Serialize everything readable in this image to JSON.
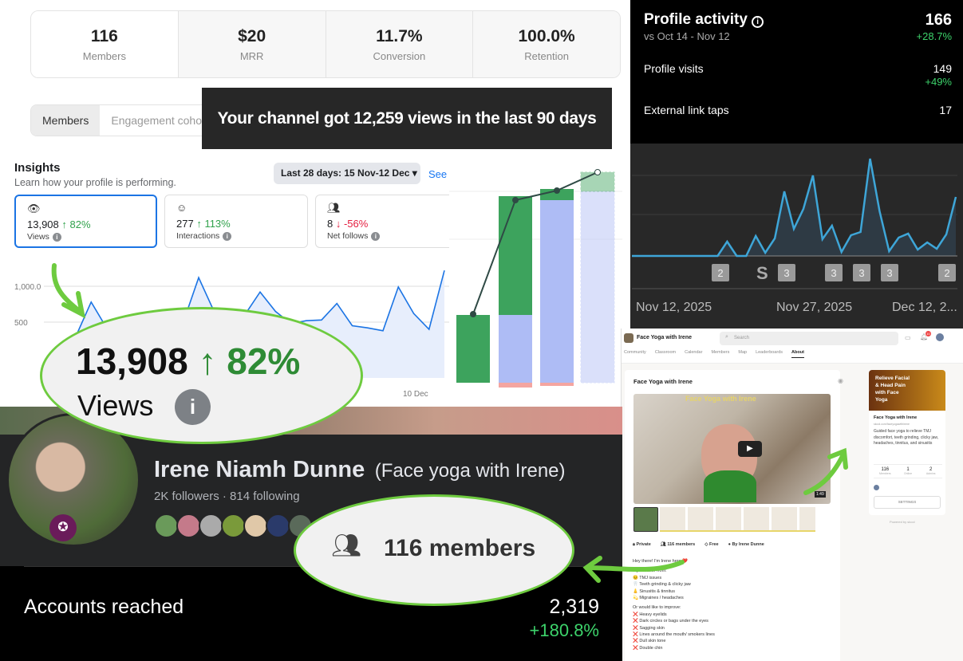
{
  "stats": [
    {
      "value": "116",
      "label": "Members"
    },
    {
      "value": "$20",
      "label": "MRR"
    },
    {
      "value": "11.7%",
      "label": "Conversion"
    },
    {
      "value": "100.0%",
      "label": "Retention"
    }
  ],
  "tabs": [
    "Members",
    "Engagement coho"
  ],
  "banner": "Your channel got 12,259 views in the last 90 days",
  "insights": {
    "title": "Insights",
    "subtitle": "Learn how your profile is performing.",
    "range": "Last 28 days: 15 Nov-12 Dec",
    "see": "See",
    "cards": [
      {
        "icon": "eye-icon",
        "value": "13,908",
        "change": "↑ 82%",
        "label": "Views",
        "trend": "up"
      },
      {
        "icon": "interactions-icon",
        "value": "277",
        "change": "↑ 113%",
        "label": "Interactions",
        "trend": "up"
      },
      {
        "icon": "people-icon",
        "value": "8",
        "change": "↓ -56%",
        "label": "Net follows",
        "trend": "down"
      }
    ],
    "yticks": [
      "1,000.0",
      "500"
    ],
    "xtick": "10 Dec"
  },
  "views_callout": {
    "value": "13,908",
    "change": "↑ 82%",
    "label": "Views"
  },
  "profile_activity": {
    "title": "Profile activity",
    "compare": "vs Oct 14 - Nov 12",
    "total": "166",
    "total_change": "+28.7%",
    "rows": [
      {
        "label": "Profile visits",
        "value": "149",
        "change": "+49%"
      },
      {
        "label": "External link taps",
        "value": "17",
        "change": ""
      }
    ]
  },
  "youtube": {
    "xticks": [
      "Nov 12, 2025",
      "Nov 27, 2025",
      "Dec 12, 2..."
    ],
    "markers": [
      "2",
      "shorts-icon",
      "3",
      "3",
      "3",
      "3",
      "2"
    ]
  },
  "fb_profile": {
    "name": "Irene Niamh Dunne",
    "alt_name": "(Face yoga with Irene)",
    "followers": "2K followers · 814 following"
  },
  "members_callout": "116 members",
  "accounts_reached": {
    "label": "Accounts reached",
    "value": "2,319",
    "change": "+180.8%"
  },
  "skool": {
    "group": "Face Yoga with Irene",
    "search_placeholder": "Search",
    "notif_count": "10",
    "nav": [
      "Community",
      "Classroom",
      "Calendar",
      "Members",
      "Map",
      "Leaderboards",
      "About"
    ],
    "about_title": "Face Yoga with Irene",
    "video_caption": "Face Yoga with Irene",
    "duration": "1:49",
    "meta": [
      "Private",
      "116 members",
      "Free",
      "By Irene Dunne"
    ],
    "body": [
      "Hey there! I'm Irene here ❤️",
      "If you suffer from:",
      "😣 TMJ issues",
      "🦷 Teeth grinding & clicky jaw",
      "👃 Sinusitis & tinnitus",
      "💫 Migraines / headaches",
      "Or would like to improve:",
      "❌ Heavy eyelids",
      "❌ Dark circles or bags under the eyes",
      "❌ Sagging skin",
      "❌ Lines around the mouth/ smokers lines",
      "❌ Dull skin tone",
      "❌ Double chin"
    ],
    "side": {
      "banner": "Relieve Facial & Head Pain with Face Yoga",
      "name": "Face Yoga with Irene",
      "url": "skool.com/faceyogawithirene",
      "desc": "Guided face yoga to relieve TMJ discomfort, teeth grinding, clicky jaw, headaches, tinnitus, and sinusitis",
      "stats": [
        {
          "v": "116",
          "l": "Members"
        },
        {
          "v": "1",
          "l": "Online"
        },
        {
          "v": "2",
          "l": "Admins"
        }
      ],
      "settings": "SETTINGS",
      "powered": "Powered by skool"
    }
  },
  "colors": {
    "fb_blue": "#1877f2",
    "green": "#31a24c",
    "red": "#e41e3f",
    "yt_line": "#3ea6d8",
    "callout_green": "#6ecb3f"
  },
  "chart_data": [
    {
      "type": "area",
      "yticks": [
        500,
        1000
      ],
      "xticks": [
        "10 Dec"
      ],
      "values": [
        300,
        780,
        420,
        380,
        350,
        400,
        450,
        500,
        1120,
        650,
        580,
        600,
        920,
        650,
        480,
        520,
        530,
        760,
        450,
        420,
        380,
        990,
        620,
        400,
        1220
      ]
    },
    {
      "type": "line",
      "xticks": [
        "Nov 12, 2025",
        "Nov 27, 2025",
        "Dec 12, 2..."
      ],
      "values": [
        0,
        0,
        0,
        0,
        0,
        0,
        0,
        0,
        0,
        0,
        18,
        0,
        0,
        25,
        4,
        22,
        81,
        34,
        59,
        101,
        21,
        38,
        5,
        26,
        30,
        122,
        56,
        6,
        23,
        28,
        8,
        17,
        9,
        27,
        74
      ]
    },
    {
      "type": "bar",
      "stacked": true,
      "series": [
        {
          "name": "",
          "color": "#3da35d",
          "values": [
            85,
            149,
            14,
            24
          ]
        },
        {
          "name": "",
          "color": "#aebcf5",
          "values": [
            0,
            85,
            229,
            240
          ]
        },
        {
          "name": "",
          "color": "#f4a5a0",
          "values": [
            0,
            -6,
            -4,
            0
          ]
        }
      ],
      "line": [
        86,
        229,
        241,
        264
      ]
    }
  ]
}
